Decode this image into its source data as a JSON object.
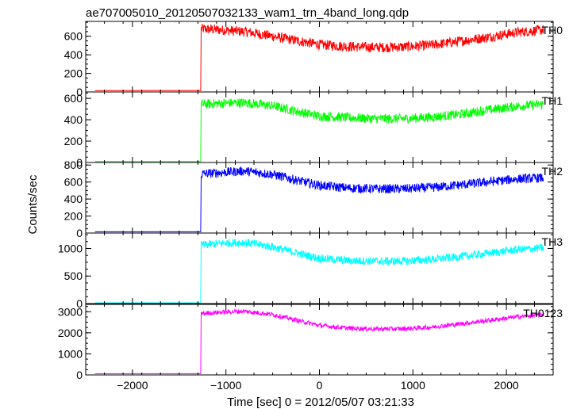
{
  "title": "ae707005010_20120507032133_wam1_trn_4band_long.qdp",
  "xlabel": "Time [sec] 0 = 2012/05/07 03:21:33",
  "ylabel": "Counts/sec",
  "chart_data": {
    "type": "line",
    "title": "ae707005010_20120507032133_wam1_trn_4band_long.qdp",
    "xlabel": "Time [sec] 0 = 2012/05/07 03:21:33",
    "ylabel": "Counts/sec",
    "xlim": [
      -2500,
      2500
    ],
    "x_ticks": [
      -2000,
      -1000,
      0,
      1000,
      2000
    ],
    "x_tick_labels": [
      "−2000",
      "−1000",
      "0",
      "1000",
      "2000"
    ],
    "grid": false,
    "panels": [
      {
        "name": "TH0",
        "color": "#ff0000",
        "ylim": [
          0,
          760
        ],
        "y_ticks": [
          0,
          200,
          400,
          600
        ],
        "series_x": [
          -2400,
          -1270,
          -1265,
          -1000,
          -800,
          -500,
          -200,
          0,
          300,
          600,
          900,
          1200,
          1500,
          1800,
          2100,
          2400
        ],
        "series_y": [
          15,
          15,
          680,
          665,
          650,
          600,
          545,
          510,
          490,
          480,
          485,
          505,
          545,
          590,
          640,
          670
        ],
        "noise": 55
      },
      {
        "name": "TH1",
        "color": "#00ff00",
        "ylim": [
          0,
          660
        ],
        "y_ticks": [
          0,
          200,
          400,
          600
        ],
        "series_x": [
          -2400,
          -1270,
          -1265,
          -1000,
          -800,
          -500,
          -200,
          0,
          300,
          600,
          900,
          1200,
          1500,
          1800,
          2100,
          2400
        ],
        "series_y": [
          10,
          10,
          545,
          555,
          560,
          530,
          470,
          435,
          420,
          410,
          410,
          425,
          450,
          490,
          525,
          545
        ],
        "noise": 45
      },
      {
        "name": "TH2",
        "color": "#0000ff",
        "ylim": [
          0,
          830
        ],
        "y_ticks": [
          0,
          200,
          400,
          600,
          800
        ],
        "series_x": [
          -2400,
          -1270,
          -1265,
          -1000,
          -800,
          -500,
          -200,
          0,
          300,
          600,
          900,
          1200,
          1500,
          1800,
          2100,
          2400
        ],
        "series_y": [
          15,
          15,
          695,
          715,
          730,
          690,
          610,
          560,
          530,
          520,
          520,
          535,
          565,
          600,
          635,
          650
        ],
        "noise": 55
      },
      {
        "name": "TH3",
        "color": "#00ffff",
        "ylim": [
          0,
          1280
        ],
        "y_ticks": [
          0,
          500,
          1000
        ],
        "series_x": [
          -2400,
          -1270,
          -1265,
          -1000,
          -800,
          -500,
          -200,
          0,
          300,
          600,
          900,
          1200,
          1500,
          1800,
          2100,
          2400
        ],
        "series_y": [
          15,
          15,
          1060,
          1100,
          1110,
          1030,
          900,
          820,
          780,
          770,
          770,
          800,
          850,
          910,
          975,
          1010
        ],
        "noise": 75
      },
      {
        "name": "TH0123",
        "color": "#ff00ff",
        "ylim": [
          0,
          3350
        ],
        "y_ticks": [
          0,
          1000,
          2000,
          3000
        ],
        "series_x": [
          -2400,
          -1270,
          -1265,
          -1000,
          -800,
          -500,
          -200,
          0,
          300,
          600,
          900,
          1200,
          1500,
          1800,
          2100,
          2400
        ],
        "series_y": [
          60,
          60,
          2920,
          2990,
          3020,
          2870,
          2550,
          2350,
          2220,
          2180,
          2190,
          2270,
          2420,
          2580,
          2750,
          2870
        ],
        "noise": 110
      }
    ]
  }
}
